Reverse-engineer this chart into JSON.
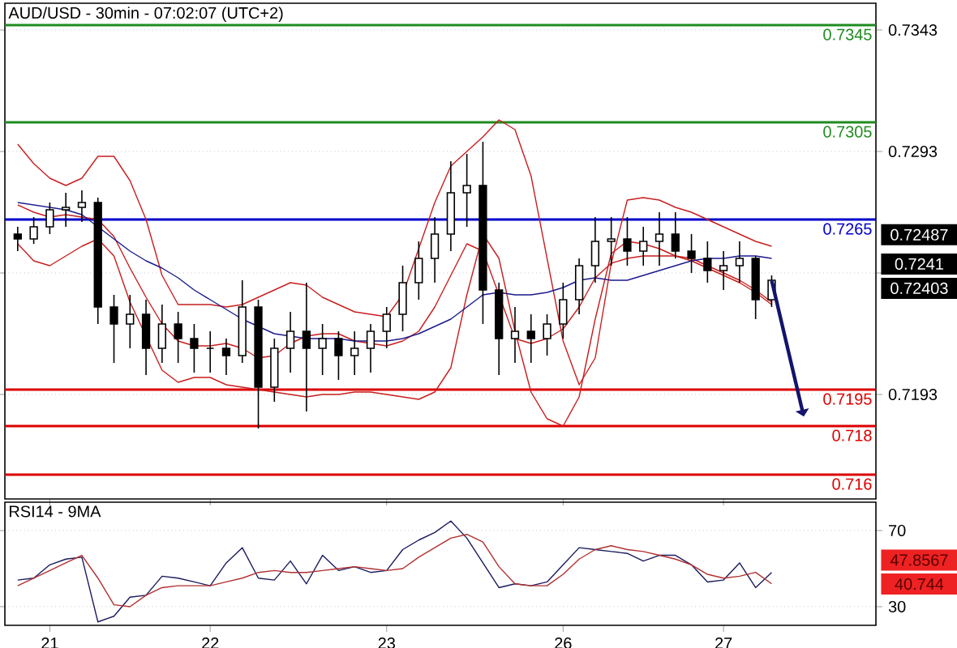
{
  "chart_data": [
    {
      "type": "candlestick",
      "title": "AUD/USD - 30min - 07:02:07 (UTC+2)",
      "color": "#000000",
      "categories": [
        null,
        null,
        null,
        null,
        null,
        null,
        null,
        null,
        null,
        null,
        null,
        null,
        null,
        null,
        null,
        null,
        null,
        null,
        null,
        null,
        null,
        null,
        null,
        null,
        null,
        null,
        null,
        null,
        null,
        null,
        null,
        null,
        null,
        null,
        null,
        null,
        null,
        null,
        null,
        null,
        null,
        null,
        null,
        null,
        null,
        null,
        null,
        null
      ],
      "ohlc": [
        [
          0.7259,
          0.7262,
          0.7252,
          0.7257
        ],
        [
          0.7257,
          0.7266,
          0.7255,
          0.7262
        ],
        [
          0.7262,
          0.7272,
          0.7259,
          0.7269
        ],
        [
          0.7269,
          0.7276,
          0.7262,
          0.727
        ],
        [
          0.727,
          0.7277,
          0.7264,
          0.7272
        ],
        [
          0.7272,
          0.7274,
          0.7222,
          0.7229
        ],
        [
          0.7229,
          0.7234,
          0.7206,
          0.7222
        ],
        [
          0.7222,
          0.7234,
          0.7212,
          0.7226
        ],
        [
          0.7226,
          0.7232,
          0.7201,
          0.7212
        ],
        [
          0.7212,
          0.723,
          0.7206,
          0.7222
        ],
        [
          0.7222,
          0.7227,
          0.7206,
          0.7216
        ],
        [
          0.7216,
          0.7222,
          0.7202,
          0.7212
        ],
        [
          0.7212,
          0.7219,
          0.7202,
          0.7212
        ],
        [
          0.7212,
          0.7216,
          0.7201,
          0.7209
        ],
        [
          0.7209,
          0.724,
          0.7206,
          0.7229
        ],
        [
          0.7229,
          0.7232,
          0.7179,
          0.7196
        ],
        [
          0.7196,
          0.7216,
          0.719,
          0.7212
        ],
        [
          0.7212,
          0.7227,
          0.7202,
          0.7219
        ],
        [
          0.7219,
          0.7239,
          0.7186,
          0.7212
        ],
        [
          0.7212,
          0.7222,
          0.7201,
          0.7216
        ],
        [
          0.7216,
          0.7219,
          0.7199,
          0.7209
        ],
        [
          0.7209,
          0.7219,
          0.7201,
          0.7212
        ],
        [
          0.7212,
          0.7222,
          0.7202,
          0.7219
        ],
        [
          0.7219,
          0.7229,
          0.7212,
          0.7226
        ],
        [
          0.7226,
          0.7246,
          0.7219,
          0.7239
        ],
        [
          0.7239,
          0.7256,
          0.7232,
          0.7249
        ],
        [
          0.7249,
          0.7266,
          0.7239,
          0.7259
        ],
        [
          0.7259,
          0.7289,
          0.7252,
          0.7276
        ],
        [
          0.7276,
          0.7292,
          0.7262,
          0.7279
        ],
        [
          0.7279,
          0.7297,
          0.7222,
          0.7236
        ],
        [
          0.7236,
          0.7239,
          0.7201,
          0.7216
        ],
        [
          0.7216,
          0.7229,
          0.7206,
          0.7219
        ],
        [
          0.7219,
          0.7226,
          0.7206,
          0.7216
        ],
        [
          0.7216,
          0.7226,
          0.7209,
          0.7222
        ],
        [
          0.7222,
          0.7239,
          0.7216,
          0.7232
        ],
        [
          0.7232,
          0.7249,
          0.7226,
          0.7246
        ],
        [
          0.7246,
          0.7266,
          0.7239,
          0.7256
        ],
        [
          0.7256,
          0.7266,
          0.7246,
          0.7257
        ],
        [
          0.7257,
          0.7266,
          0.7246,
          0.7252
        ],
        [
          0.7252,
          0.7262,
          0.7246,
          0.7256
        ],
        [
          0.7256,
          0.7268,
          0.7246,
          0.7259
        ],
        [
          0.7259,
          0.7268,
          0.7249,
          0.7252
        ],
        [
          0.7252,
          0.7259,
          0.7243,
          0.7249
        ],
        [
          0.7249,
          0.7256,
          0.7239,
          0.7244
        ],
        [
          0.7244,
          0.7252,
          0.7236,
          0.7246
        ],
        [
          0.7246,
          0.7256,
          0.7239,
          0.7249
        ],
        [
          0.7249,
          0.725,
          0.7224,
          0.7232
        ],
        [
          0.7232,
          0.7242,
          0.7229,
          0.724
        ]
      ],
      "series": [
        {
          "type": "line",
          "color": "#c81e1e",
          "values": [
            0.7296,
            0.7288,
            0.7282,
            0.7279,
            0.7282,
            0.7291,
            0.7291,
            0.7281,
            0.7265,
            0.7242,
            0.723,
            0.723,
            0.723,
            0.7229,
            0.723,
            0.7233,
            0.7236,
            0.7239,
            0.7238,
            0.7233,
            0.723,
            0.7227,
            0.7226,
            0.7225,
            0.7234,
            0.7253,
            0.7272,
            0.7287,
            0.7293,
            0.7299,
            0.7306,
            0.7302,
            0.7283,
            0.7249,
            0.7215,
            0.7197,
            0.7208,
            0.7247,
            0.7273,
            0.7274,
            0.7273,
            0.727,
            0.7268,
            0.7265,
            0.7262,
            0.7259,
            0.7256,
            0.7254
          ]
        },
        {
          "type": "line",
          "color": "#c81e1e",
          "values": [
            0.7271,
            0.7268,
            0.7266,
            0.7267,
            0.7266,
            0.7265,
            0.7258,
            0.7245,
            0.7233,
            0.7222,
            0.7215,
            0.7213,
            0.7213,
            0.7214,
            0.7212,
            0.7208,
            0.7209,
            0.7214,
            0.7217,
            0.7218,
            0.7218,
            0.7215,
            0.7214,
            0.7213,
            0.7215,
            0.7219,
            0.7229,
            0.7242,
            0.7255,
            0.7252,
            null,
            0.7216,
            0.7214,
            0.7216,
            0.722,
            0.7229,
            0.7241,
            0.7247,
            0.7249,
            0.725,
            0.725,
            0.725,
            0.7249,
            0.7246,
            0.7243,
            0.724,
            0.7236,
            0.7231
          ]
        },
        {
          "type": "line",
          "color": "#c81e1e",
          "values": [
            0.7255,
            0.7248,
            0.7246,
            0.725,
            0.7254,
            0.7257,
            0.725,
            0.7231,
            null,
            0.7203,
            0.7198,
            0.72,
            0.72,
            0.7197,
            0.7196,
            0.7195,
            0.7194,
            0.7193,
            0.7192,
            0.7193,
            0.7193,
            0.7194,
            0.7194,
            0.7193,
            0.7192,
            0.7191,
            0.7194,
            0.7204,
            0.7234,
            0.7259,
            0.7249,
            0.7219,
            0.7194,
            0.7183,
            0.718,
            0.7192,
            0.7224,
            0.7251,
            0.7256,
            0.7255,
            0.7253,
            0.725,
            0.7248,
            0.7245,
            0.7242,
            0.7239,
            0.7235,
            0.723
          ]
        },
        {
          "type": "line",
          "color": "#1a1a8c",
          "values": [
            0.7272,
            0.7271,
            0.727,
            0.7269,
            0.7267,
            0.7262,
            0.7257,
            0.7252,
            0.7248,
            0.7245,
            0.7241,
            0.7236,
            0.7232,
            0.7228,
            0.7224,
            0.7221,
            0.7218,
            0.7217,
            0.7216,
            0.7216,
            0.7216,
            0.7215,
            0.7215,
            0.7215,
            0.7216,
            0.7218,
            0.7221,
            0.7224,
            0.7229,
            0.7234,
            0.7235,
            0.7234,
            0.7234,
            0.7235,
            0.7237,
            0.724,
            0.7241,
            0.724,
            0.724,
            0.7242,
            0.7244,
            0.7246,
            0.7248,
            0.7249,
            0.7249,
            0.725,
            0.725,
            0.7249
          ]
        }
      ],
      "ylim": [
        0.715,
        0.7354
      ],
      "yticks": [
        0.7343,
        0.7293,
        {
          "value": 0.7243,
          "label": null
        },
        0.7193
      ],
      "grid": "y",
      "tick_labels": "y",
      "ref_lines": [
        {
          "axis": "y",
          "value": 0.7345,
          "label": "0.7345",
          "color": "#1e8c1e"
        },
        {
          "axis": "y",
          "value": 0.7305,
          "label": "0.7305",
          "color": "#1e8c1e"
        },
        {
          "axis": "y",
          "value": 0.7265,
          "label": "0.7265",
          "color": "#0000cc"
        },
        {
          "axis": "y",
          "value": 0.7195,
          "label": "0.7195",
          "color": "#dd0000"
        },
        {
          "axis": "y",
          "value": 0.718,
          "label": "0.718",
          "color": "#dd0000"
        },
        {
          "axis": "y",
          "value": 0.716,
          "label": "0.716",
          "color": "#dd0000"
        }
      ],
      "annotations": [
        "0.72487",
        "0.7241",
        "0.72403"
      ]
    },
    {
      "type": "line",
      "title": "RSI14 - 9MA",
      "categories": [
        null,
        null,
        "21",
        null,
        null,
        null,
        null,
        null,
        null,
        null,
        null,
        null,
        "22",
        null,
        null,
        null,
        null,
        null,
        null,
        null,
        null,
        null,
        null,
        "23",
        null,
        null,
        null,
        null,
        null,
        null,
        null,
        null,
        null,
        null,
        "26",
        null,
        null,
        null,
        null,
        null,
        null,
        null,
        null,
        null,
        "27",
        null,
        null,
        null
      ],
      "series": [
        {
          "color": "#1a1a5e",
          "values": [
            44,
            45,
            52,
            55,
            56,
            22,
            25,
            35,
            36,
            46,
            45,
            43,
            41,
            53,
            61,
            45,
            44,
            54,
            42,
            57,
            49,
            51,
            48,
            49,
            60,
            65,
            69,
            75,
            66,
            53,
            40,
            42,
            41,
            43,
            52,
            61,
            60,
            59,
            58,
            54,
            57,
            57,
            52,
            43,
            44,
            53,
            40,
            48
          ]
        },
        {
          "color": "#b03030",
          "values": [
            41,
            45,
            49,
            53,
            57,
            45,
            31,
            30,
            36,
            40,
            41,
            41,
            41,
            43,
            45,
            48,
            49,
            48,
            48,
            49,
            50,
            51,
            50,
            49,
            50,
            56,
            61,
            66,
            68,
            64,
            51,
            42,
            41,
            41,
            47,
            55,
            60,
            62,
            60,
            59,
            57,
            55,
            52,
            47,
            45,
            46,
            48,
            42
          ]
        }
      ],
      "ylim": [
        20.2,
        84.9
      ],
      "yticks": [
        70,
        30
      ],
      "grid": "y",
      "annotations": [
        "47.8567",
        "40.744"
      ]
    }
  ]
}
